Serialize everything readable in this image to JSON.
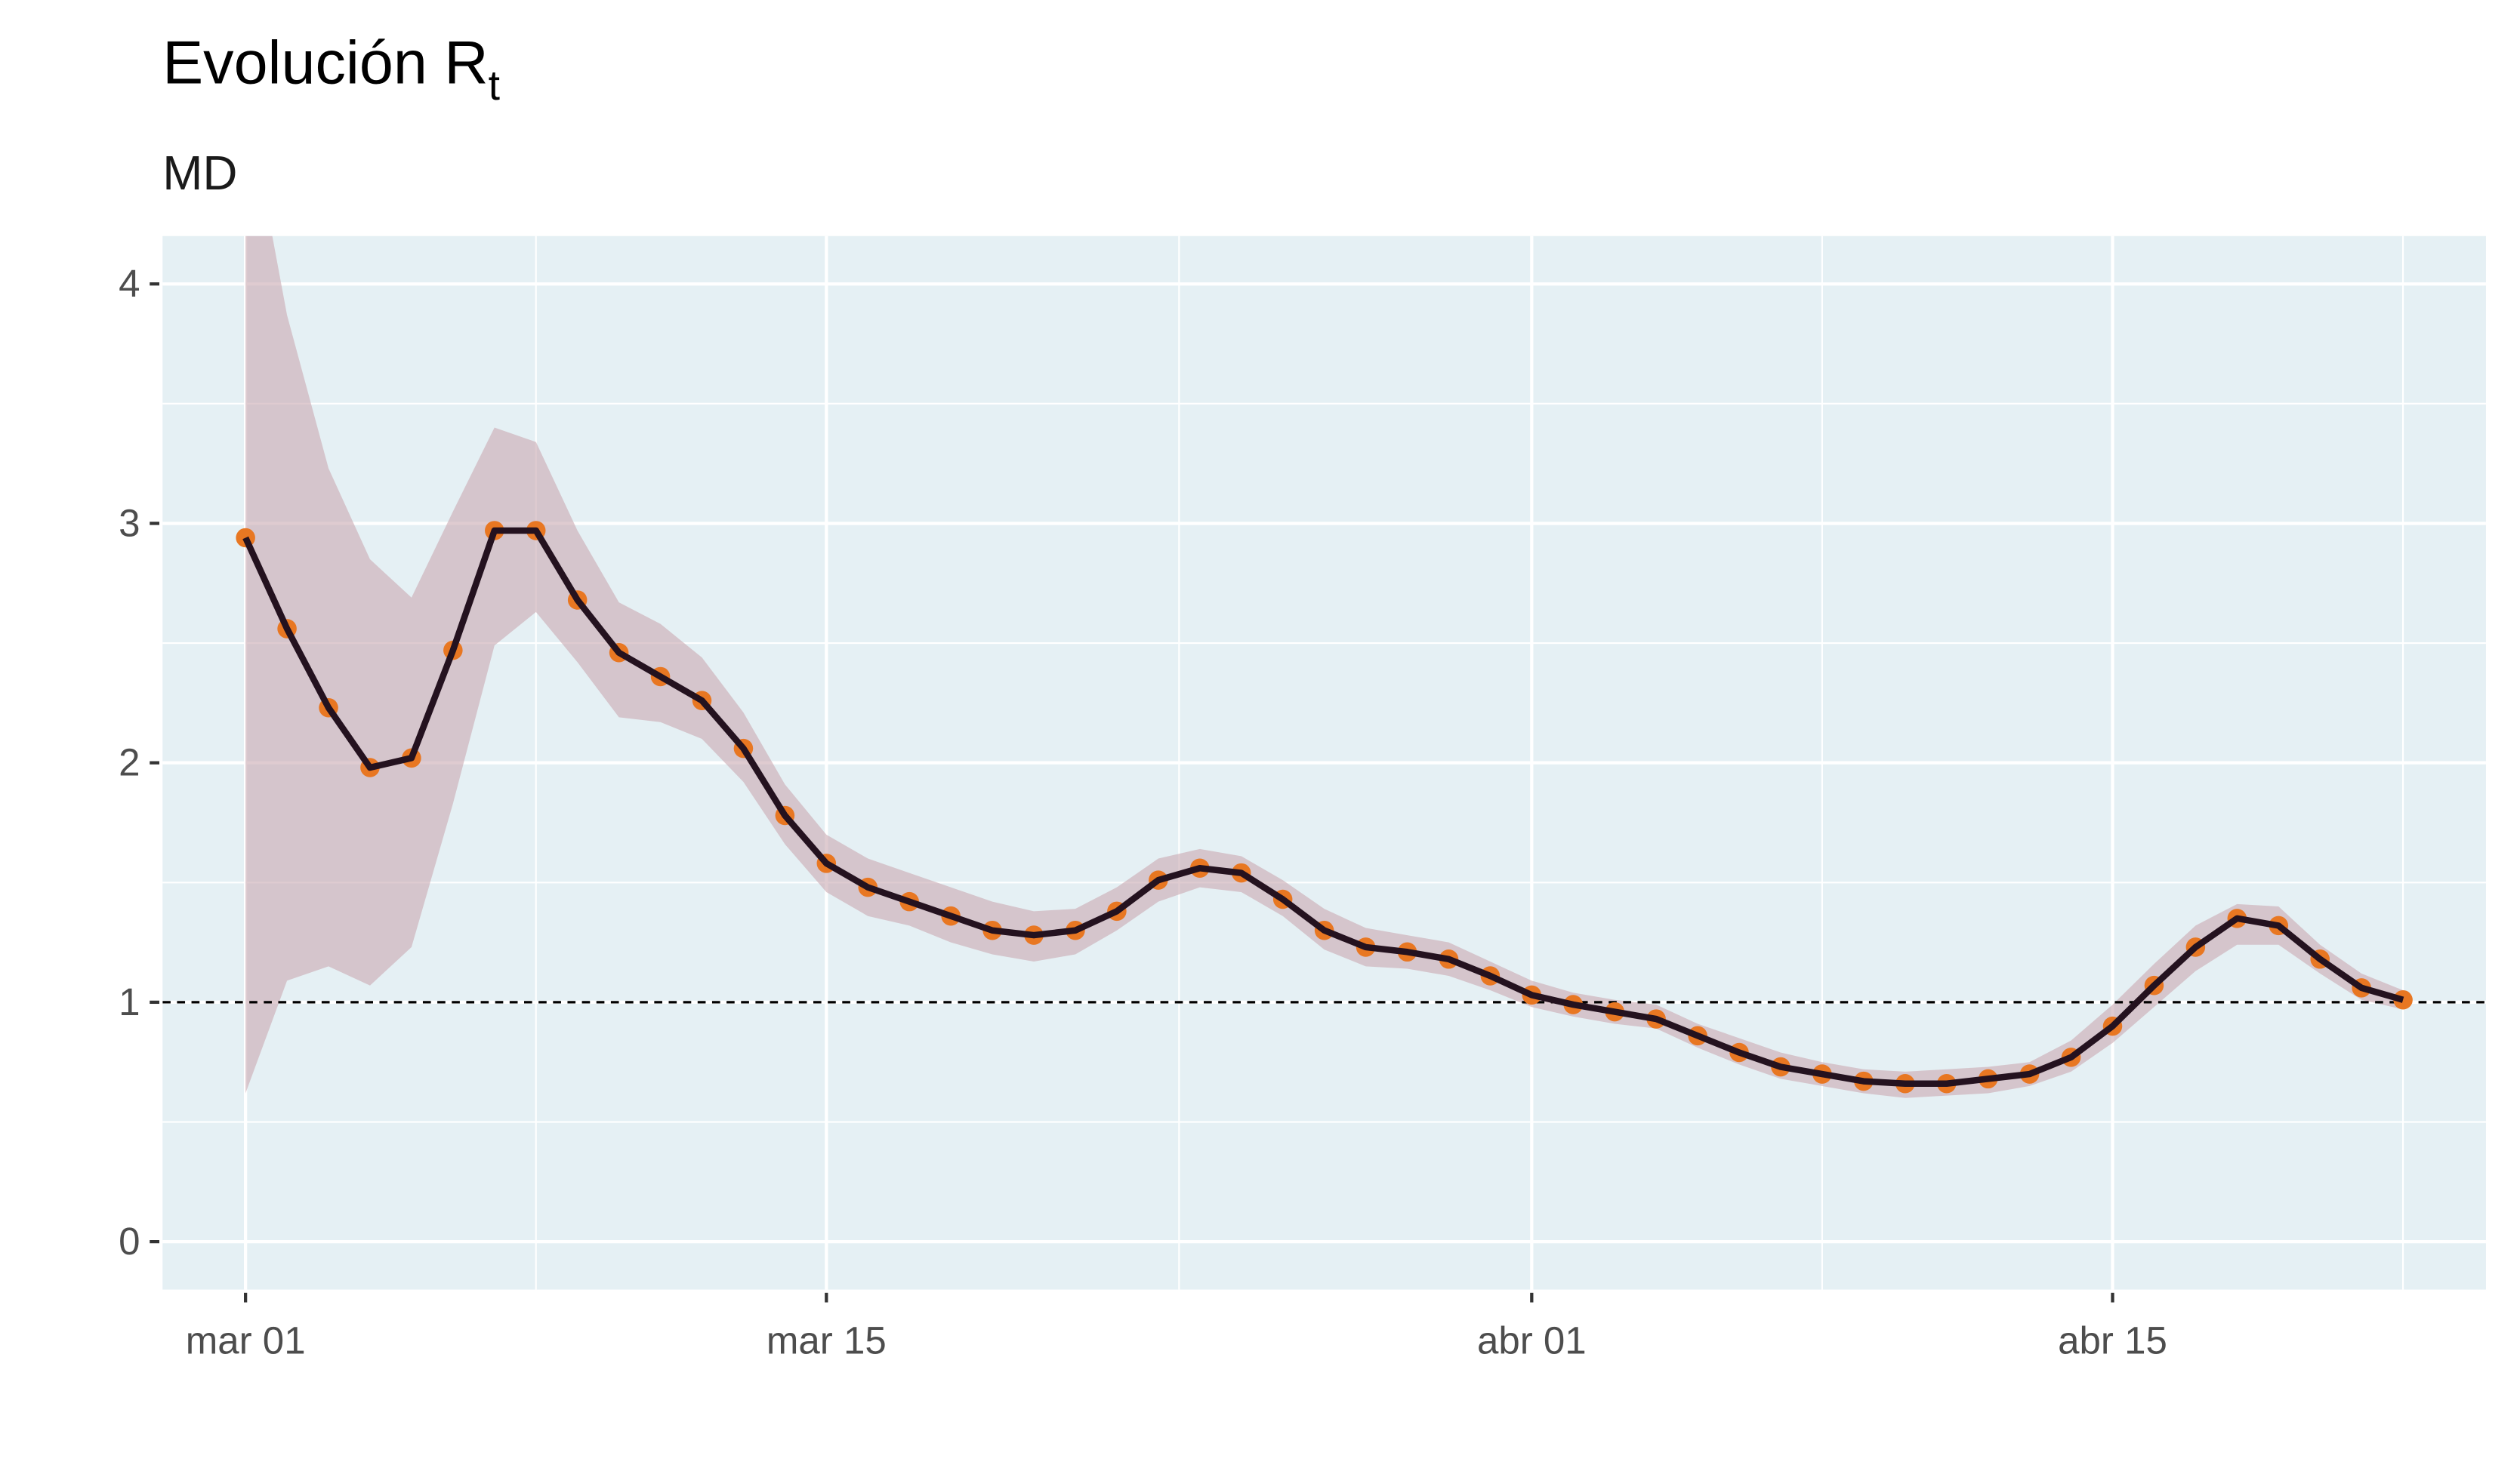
{
  "chart_data": {
    "type": "line",
    "title": "Evolución R",
    "title_subscript": "t",
    "subtitle": "MD",
    "x": [
      "03-01",
      "03-02",
      "03-03",
      "03-04",
      "03-05",
      "03-06",
      "03-07",
      "03-08",
      "03-09",
      "03-10",
      "03-11",
      "03-12",
      "03-13",
      "03-14",
      "03-15",
      "03-16",
      "03-17",
      "03-18",
      "03-19",
      "03-20",
      "03-21",
      "03-22",
      "03-23",
      "03-24",
      "03-25",
      "03-26",
      "03-27",
      "03-28",
      "03-29",
      "03-30",
      "03-31",
      "04-01",
      "04-02",
      "04-03",
      "04-04",
      "04-05",
      "04-06",
      "04-07",
      "04-08",
      "04-09",
      "04-10",
      "04-11",
      "04-12",
      "04-13",
      "04-14",
      "04-15",
      "04-16",
      "04-17",
      "04-18",
      "04-19",
      "04-20",
      "04-21",
      "04-22"
    ],
    "values": [
      2.94,
      2.56,
      2.23,
      1.98,
      2.02,
      2.47,
      2.97,
      2.97,
      2.68,
      2.46,
      2.36,
      2.26,
      2.06,
      1.78,
      1.58,
      1.48,
      1.42,
      1.36,
      1.3,
      1.28,
      1.3,
      1.38,
      1.51,
      1.56,
      1.54,
      1.43,
      1.3,
      1.23,
      1.21,
      1.18,
      1.11,
      1.03,
      0.99,
      0.96,
      0.93,
      0.86,
      0.79,
      0.73,
      0.7,
      0.67,
      0.66,
      0.66,
      0.68,
      0.7,
      0.77,
      0.9,
      1.07,
      1.23,
      1.35,
      1.32,
      1.18,
      1.06,
      1.01
    ],
    "lower": [
      0.62,
      1.09,
      1.15,
      1.07,
      1.23,
      1.83,
      2.49,
      2.63,
      2.42,
      2.19,
      2.17,
      2.1,
      1.92,
      1.66,
      1.46,
      1.36,
      1.32,
      1.25,
      1.2,
      1.17,
      1.2,
      1.3,
      1.42,
      1.48,
      1.46,
      1.36,
      1.22,
      1.15,
      1.14,
      1.11,
      1.05,
      0.98,
      0.94,
      0.91,
      0.89,
      0.81,
      0.74,
      0.68,
      0.65,
      0.62,
      0.6,
      0.61,
      0.62,
      0.65,
      0.71,
      0.83,
      0.98,
      1.13,
      1.24,
      1.24,
      1.12,
      1.01,
      0.97
    ],
    "upper": [
      4.8,
      3.87,
      3.23,
      2.85,
      2.69,
      3.05,
      3.4,
      3.34,
      2.97,
      2.67,
      2.58,
      2.44,
      2.21,
      1.91,
      1.7,
      1.6,
      1.54,
      1.48,
      1.42,
      1.38,
      1.39,
      1.48,
      1.6,
      1.64,
      1.61,
      1.51,
      1.39,
      1.31,
      1.28,
      1.25,
      1.17,
      1.09,
      1.04,
      1.01,
      0.99,
      0.91,
      0.85,
      0.79,
      0.75,
      0.72,
      0.71,
      0.72,
      0.73,
      0.75,
      0.84,
      0.99,
      1.16,
      1.32,
      1.41,
      1.4,
      1.24,
      1.12,
      1.05
    ],
    "line_color": "#24121f",
    "point_color": "#e87722",
    "band_color": "#c9a9b0",
    "panel_color": "#e5f0f4",
    "hline": 1,
    "xlim": [
      "02-27",
      "04-24"
    ],
    "xticks": [
      {
        "value": "03-01",
        "label": "mar 01"
      },
      {
        "value": "03-15",
        "label": "mar 15"
      },
      {
        "value": "04-01",
        "label": "abr 01"
      },
      {
        "value": "04-15",
        "label": "abr 15"
      }
    ],
    "ylim": [
      -0.2,
      4.2
    ],
    "yticks": [
      0,
      1,
      2,
      3,
      4
    ],
    "grid": true
  }
}
